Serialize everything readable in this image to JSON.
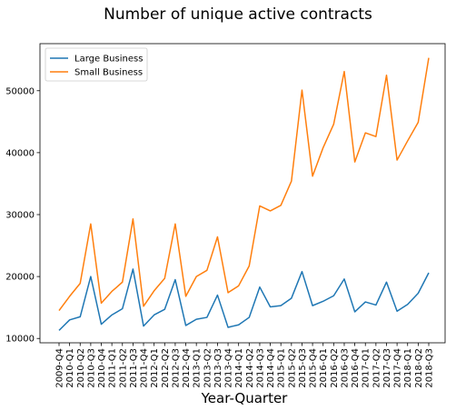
{
  "chart_data": {
    "type": "line",
    "title": "Number of unique active contracts",
    "xlabel": "Year-Quarter",
    "ylabel": "",
    "categories": [
      "2009-Q4",
      "2010-Q1",
      "2010-Q2",
      "2010-Q3",
      "2010-Q4",
      "2011-Q1",
      "2011-Q2",
      "2011-Q3",
      "2011-Q4",
      "2012-Q1",
      "2012-Q2",
      "2012-Q3",
      "2012-Q4",
      "2013-Q1",
      "2013-Q2",
      "2013-Q3",
      "2013-Q4",
      "2014-Q1",
      "2014-Q2",
      "2014-Q3",
      "2014-Q4",
      "2015-Q1",
      "2015-Q2",
      "2015-Q3",
      "2015-Q4",
      "2016-Q1",
      "2016-Q2",
      "2016-Q3",
      "2016-Q4",
      "2017-Q1",
      "2017-Q2",
      "2017-Q3",
      "2017-Q4",
      "2018-Q1",
      "2018-Q2",
      "2018-Q3"
    ],
    "yticks": [
      10000,
      20000,
      30000,
      40000,
      50000
    ],
    "ylim": [
      9300,
      57600
    ],
    "legend_position": "top-left",
    "grid": false,
    "series": [
      {
        "name": "Large Business",
        "color": "#1f77b4",
        "values": [
          11300,
          13000,
          13500,
          20000,
          12300,
          13800,
          14800,
          21200,
          12000,
          13800,
          14700,
          19500,
          12100,
          13100,
          13400,
          17000,
          11800,
          12200,
          13400,
          18300,
          15100,
          15300,
          16500,
          20800,
          15300,
          16000,
          16900,
          19600,
          14300,
          15900,
          15400,
          19100,
          14400,
          15500,
          17300,
          20600
        ]
      },
      {
        "name": "Small Business",
        "color": "#ff7f0e",
        "values": [
          14500,
          16800,
          18900,
          28500,
          15700,
          17600,
          19100,
          29300,
          15200,
          17700,
          19700,
          28500,
          16800,
          20000,
          21000,
          26400,
          17400,
          18500,
          21700,
          31400,
          30600,
          31500,
          35400,
          50100,
          36200,
          40800,
          44600,
          53100,
          38500,
          43200,
          42600,
          52500,
          38800,
          41900,
          44900,
          55300
        ]
      }
    ]
  }
}
